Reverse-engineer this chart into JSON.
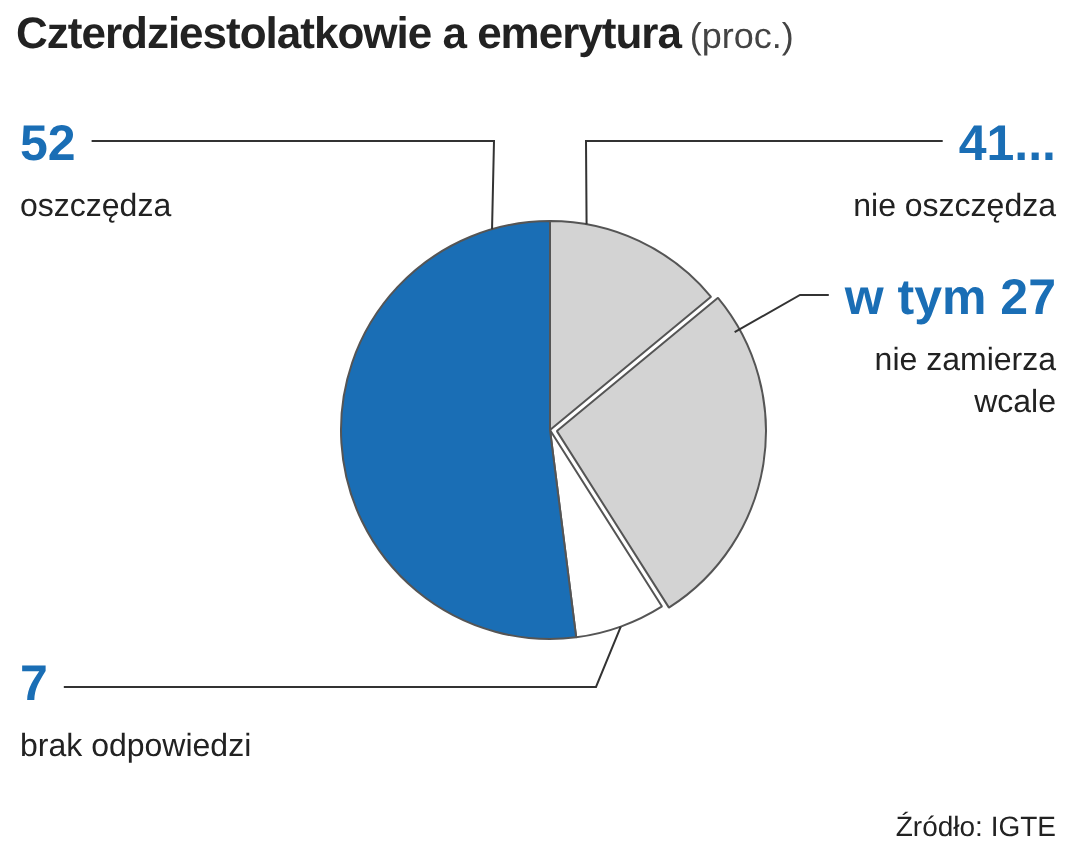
{
  "chart_data": {
    "type": "pie",
    "title": "Czterdziestolatkowie a emerytura",
    "subtitle": "(proc.)",
    "categories": [
      "nie oszczędza",
      "nie zamierza wcale",
      "brak odpowiedzi",
      "oszczędza"
    ],
    "values": [
      14,
      27,
      7,
      52
    ],
    "value_labels": [
      "41...",
      "w tym 27",
      "7",
      "52"
    ],
    "colors": [
      "#d3d3d3",
      "#d3d3d3",
      "#ffffff",
      "#1a6eb5"
    ],
    "annotations": [
      "Źródło: IGTE"
    ],
    "legend": false
  }
}
